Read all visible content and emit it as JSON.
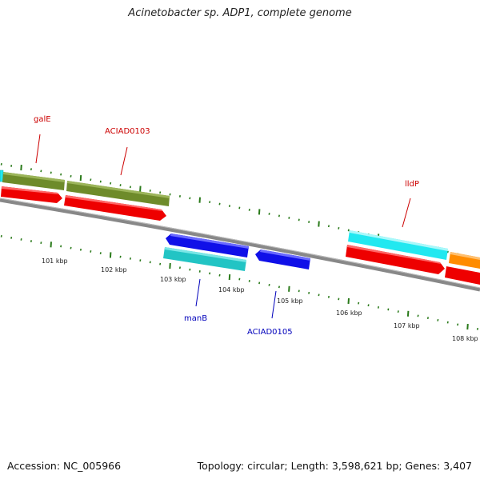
{
  "title": "Acinetobacter sp. ADP1, complete genome",
  "footer": {
    "accession": "Accession: NC_005966",
    "summary": "Topology: circular; Length: 3,598,621 bp; Genes: 3,407"
  },
  "scale_labels": [
    "101 kbp",
    "102 kbp",
    "103 kbp",
    "104 kbp",
    "105 kbp",
    "106 kbp",
    "107 kbp",
    "108 kbp"
  ],
  "gene_labels": {
    "galE": "galE",
    "aciad0103": "ACIAD0103",
    "lldP": "lldP",
    "manB": "manB",
    "aciad0105": "ACIAD0105"
  },
  "colors": {
    "backbone": "#888888",
    "tick": "#2a7a1a",
    "red_label": "#cc0000",
    "blue_label": "#0000bb",
    "olive": "#6e8b2a",
    "red": "#ee0000",
    "cyan": "#22e8f0",
    "teal": "#22c4c4",
    "blue": "#1010e8",
    "orange": "#ff8c00"
  }
}
